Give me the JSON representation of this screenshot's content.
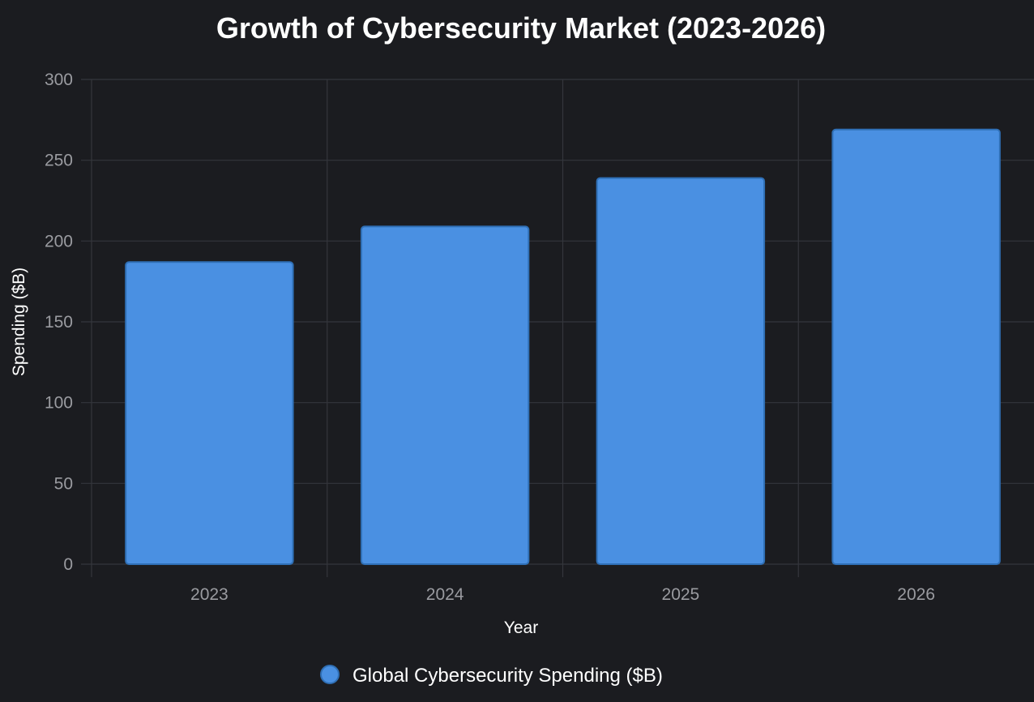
{
  "chart_data": {
    "type": "bar",
    "title": "Growth of Cybersecurity Market (2023-2026)",
    "xlabel": "Year",
    "ylabel": "Spending ($B)",
    "categories": [
      "2023",
      "2024",
      "2025",
      "2026"
    ],
    "series": [
      {
        "name": "Global Cybersecurity Spending ($B)",
        "values": [
          187,
          209,
          239,
          269
        ],
        "color": "#4a90e2",
        "border_color": "#2f6fb5"
      }
    ],
    "ylim": [
      0,
      300
    ],
    "yticks": [
      0,
      50,
      100,
      150,
      200,
      250,
      300
    ],
    "grid": true,
    "legend_position": "bottom"
  },
  "colors": {
    "background": "#1b1c20",
    "grid": "#34363c",
    "tick_text": "#9a9ba0",
    "text": "#ffffff"
  }
}
